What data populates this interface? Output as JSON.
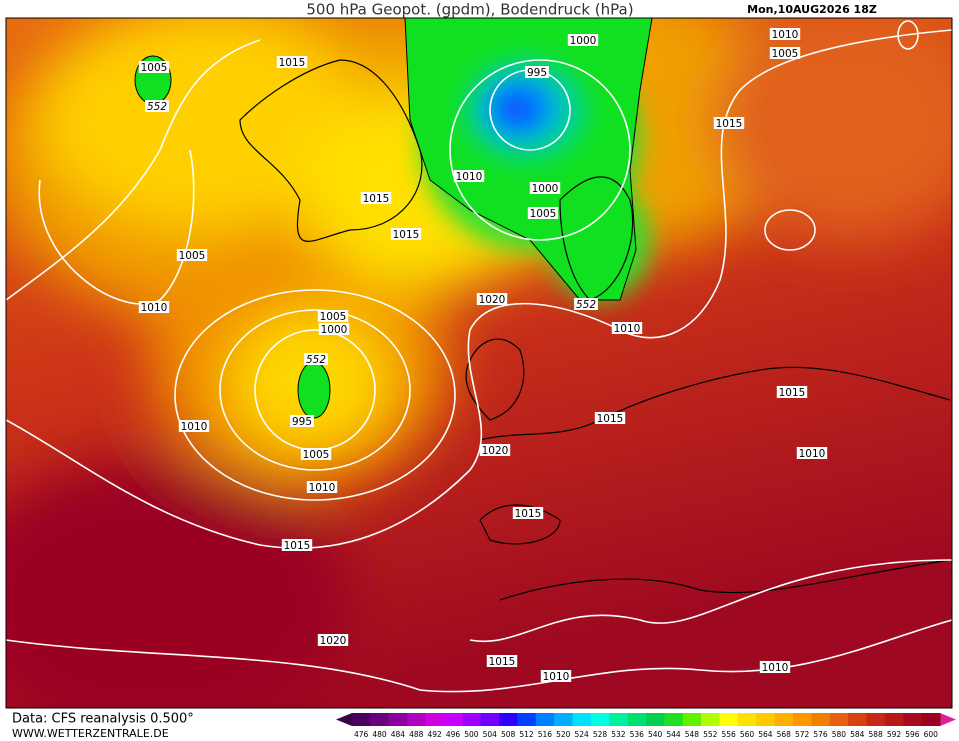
{
  "header": {
    "title": "500 hPa Geopot. (gpdm), Bodendruck (hPa)",
    "timestamp": "Mon,10AUG2026 18Z"
  },
  "footer": {
    "source": "Data: CFS reanalysis 0.500°",
    "website": "WWW.WETTERZENTRALE.DE"
  },
  "isobar_labels": [
    "1000",
    "1010",
    "1005",
    "1005",
    "552",
    "1015",
    "995",
    "1015",
    "1010",
    "1000",
    "1015",
    "1005",
    "1015",
    "1005",
    "1020",
    "552",
    "1010",
    "1010",
    "1005",
    "1000",
    "552",
    "995",
    "1015",
    "1015",
    "1010",
    "1020",
    "1010",
    "1005",
    "1010",
    "1015",
    "1015",
    "1020",
    "1015",
    "1010",
    "1010"
  ],
  "colorbar": {
    "labels": [
      476,
      480,
      484,
      488,
      492,
      496,
      500,
      504,
      508,
      512,
      516,
      520,
      524,
      528,
      532,
      536,
      540,
      544,
      548,
      552,
      556,
      560,
      564,
      568,
      572,
      576,
      580,
      584,
      588,
      592,
      596,
      600
    ],
    "colors": [
      "#4b0060",
      "#6a0080",
      "#8a00a0",
      "#b000c0",
      "#d000e0",
      "#c800ff",
      "#a000ff",
      "#7000ff",
      "#3000ff",
      "#0040ff",
      "#0080ff",
      "#00b0ff",
      "#00e0ff",
      "#00ffe0",
      "#00f0a0",
      "#00e070",
      "#00d050",
      "#20e020",
      "#60f000",
      "#b0ff00",
      "#ffff00",
      "#ffe000",
      "#ffc800",
      "#ffb000",
      "#ff9800",
      "#f08000",
      "#e86010",
      "#d84010",
      "#c82818",
      "#b81818",
      "#a80a1e",
      "#9a0020"
    ],
    "arrow_colors": [
      "#3a0048",
      "#e0209a"
    ]
  }
}
